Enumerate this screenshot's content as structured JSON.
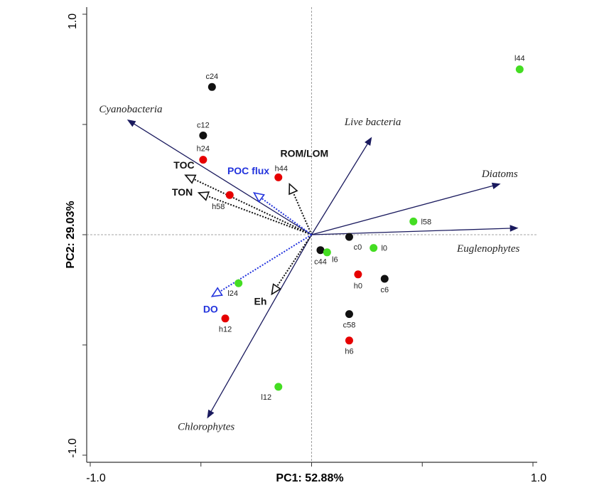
{
  "chart_data": {
    "type": "biplot",
    "x_label": "PC1: 52.88%",
    "y_label": "PC2: 29.03%",
    "xlim": [
      -1.0,
      1.0
    ],
    "ylim": [
      -1.0,
      1.0
    ],
    "xticks": [
      {
        "value": -1.0,
        "label": "-1.0"
      },
      {
        "value": 1.0,
        "label": "1.0"
      }
    ],
    "yticks": [
      {
        "value": -1.0,
        "label": "-1.0"
      },
      {
        "value": 1.0,
        "label": "1.0"
      }
    ],
    "xminorticks": [
      -0.5,
      0,
      0.5
    ],
    "yminorticks": [
      -0.5,
      0,
      0.5
    ],
    "points": [
      {
        "label": "c24",
        "x": -0.45,
        "y": 0.67,
        "color": "#111111"
      },
      {
        "label": "c12",
        "x": -0.49,
        "y": 0.45,
        "color": "#111111"
      },
      {
        "label": "h24",
        "x": -0.49,
        "y": 0.34,
        "color": "#e60000"
      },
      {
        "label": "h44",
        "x": -0.15,
        "y": 0.26,
        "color": "#e60000"
      },
      {
        "label": "h58",
        "x": -0.37,
        "y": 0.18,
        "color": "#e60000"
      },
      {
        "label": "l44",
        "x": 0.94,
        "y": 0.75,
        "color": "#44dd22"
      },
      {
        "label": "l58",
        "x": 0.46,
        "y": 0.06,
        "color": "#44dd22"
      },
      {
        "label": "c0",
        "x": 0.17,
        "y": -0.01,
        "color": "#111111"
      },
      {
        "label": "l0",
        "x": 0.28,
        "y": -0.06,
        "color": "#44dd22"
      },
      {
        "label": "c44",
        "x": 0.04,
        "y": -0.07,
        "color": "#111111"
      },
      {
        "label": "l6",
        "x": 0.07,
        "y": -0.08,
        "color": "#44dd22"
      },
      {
        "label": "h0",
        "x": 0.21,
        "y": -0.18,
        "color": "#e60000"
      },
      {
        "label": "c6",
        "x": 0.33,
        "y": -0.2,
        "color": "#111111"
      },
      {
        "label": "c58",
        "x": 0.17,
        "y": -0.36,
        "color": "#111111"
      },
      {
        "label": "h6",
        "x": 0.17,
        "y": -0.48,
        "color": "#e60000"
      },
      {
        "label": "l24",
        "x": -0.33,
        "y": -0.22,
        "color": "#44dd22"
      },
      {
        "label": "h12",
        "x": -0.39,
        "y": -0.38,
        "color": "#e60000"
      },
      {
        "label": "l12",
        "x": -0.15,
        "y": -0.69,
        "color": "#44dd22"
      }
    ],
    "arrows": [
      {
        "label": "Cyanobacteria",
        "x": -0.83,
        "y": 0.52,
        "color": "#1a1a5e",
        "line": "solid",
        "font": "italic"
      },
      {
        "label": "Live bacteria",
        "x": 0.27,
        "y": 0.44,
        "color": "#1a1a5e",
        "line": "solid",
        "font": "italic"
      },
      {
        "label": "Diatoms",
        "x": 0.85,
        "y": 0.23,
        "color": "#1a1a5e",
        "line": "solid",
        "font": "italic"
      },
      {
        "label": "Euglenophytes",
        "x": 0.93,
        "y": 0.03,
        "color": "#1a1a5e",
        "line": "solid",
        "font": "italic"
      },
      {
        "label": "Chlorophytes",
        "x": -0.47,
        "y": -0.83,
        "color": "#1a1a5e",
        "line": "solid",
        "font": "italic"
      },
      {
        "label": "TOC",
        "x": -0.57,
        "y": 0.27,
        "color": "#111111",
        "line": "dotted",
        "font": "bold"
      },
      {
        "label": "TON",
        "x": -0.51,
        "y": 0.19,
        "color": "#111111",
        "line": "dotted",
        "font": "bold"
      },
      {
        "label": "ROM/LOM",
        "x": -0.1,
        "y": 0.23,
        "color": "#111111",
        "line": "dotted",
        "font": "bold"
      },
      {
        "label": "Eh",
        "x": -0.18,
        "y": -0.27,
        "color": "#111111",
        "line": "dotted",
        "font": "bold"
      },
      {
        "label": "POC flux",
        "x": -0.26,
        "y": 0.19,
        "color": "#2233dd",
        "line": "dotted",
        "font": "bold"
      },
      {
        "label": "DO",
        "x": -0.45,
        "y": -0.28,
        "color": "#2233dd",
        "line": "dotted",
        "font": "bold"
      }
    ]
  }
}
